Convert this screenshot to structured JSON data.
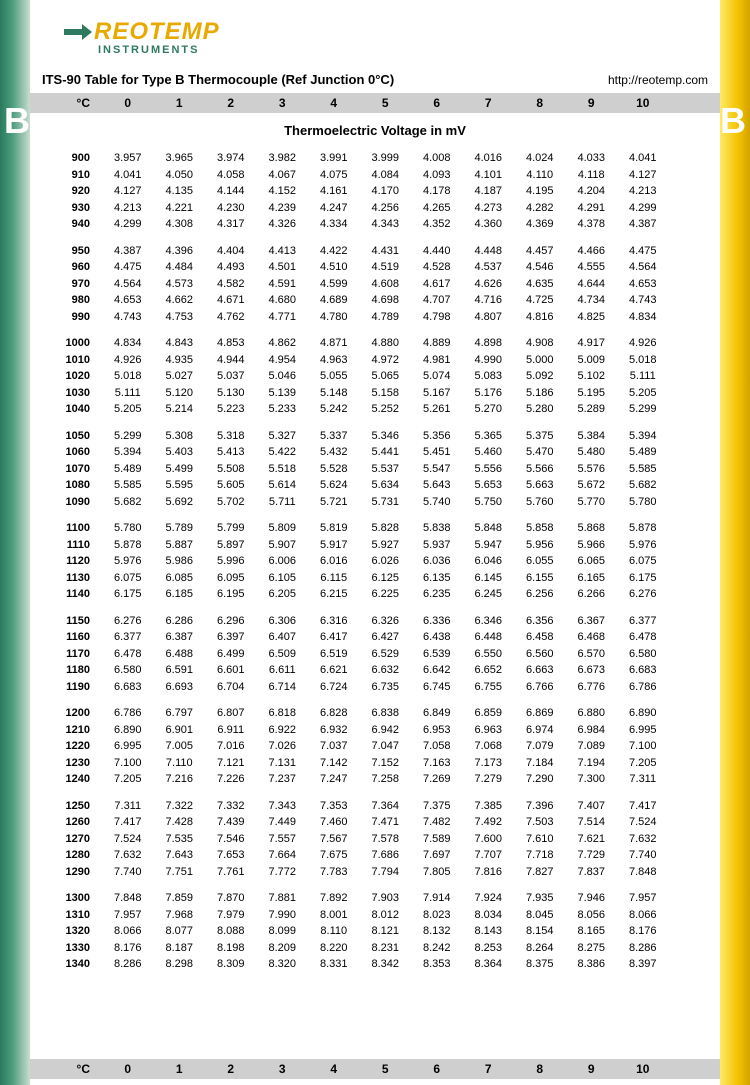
{
  "logo": {
    "brand_reo": "REO",
    "brand_temp": "TEMP",
    "sub": "INSTRUMENTS",
    "accent_color": "#e9aa00",
    "sub_color": "#2e7a5f"
  },
  "title": "ITS-90 Table for Type B Thermocouple (Ref Junction 0°C)",
  "url": "http://reotemp.com",
  "big_letter": "B",
  "subtitle": "Thermoelectric Voltage in mV",
  "header": {
    "temp_label": "°C",
    "cols": [
      "0",
      "1",
      "2",
      "3",
      "4",
      "5",
      "6",
      "7",
      "8",
      "9",
      "10"
    ]
  },
  "colors": {
    "left_grad_from": "#2b7a5f",
    "left_grad_to": "#c8ddd0",
    "right_grad_from": "#ffe96a",
    "right_grad_to": "#d4a400",
    "header_bg": "#cfcfcf"
  },
  "groups": [
    [
      {
        "t": "900",
        "v": [
          "3.957",
          "3.965",
          "3.974",
          "3.982",
          "3.991",
          "3.999",
          "4.008",
          "4.016",
          "4.024",
          "4.033",
          "4.041"
        ]
      },
      {
        "t": "910",
        "v": [
          "4.041",
          "4.050",
          "4.058",
          "4.067",
          "4.075",
          "4.084",
          "4.093",
          "4.101",
          "4.110",
          "4.118",
          "4.127"
        ]
      },
      {
        "t": "920",
        "v": [
          "4.127",
          "4.135",
          "4.144",
          "4.152",
          "4.161",
          "4.170",
          "4.178",
          "4.187",
          "4.195",
          "4.204",
          "4.213"
        ]
      },
      {
        "t": "930",
        "v": [
          "4.213",
          "4.221",
          "4.230",
          "4.239",
          "4.247",
          "4.256",
          "4.265",
          "4.273",
          "4.282",
          "4.291",
          "4.299"
        ]
      },
      {
        "t": "940",
        "v": [
          "4.299",
          "4.308",
          "4.317",
          "4.326",
          "4.334",
          "4.343",
          "4.352",
          "4.360",
          "4.369",
          "4.378",
          "4.387"
        ]
      }
    ],
    [
      {
        "t": "950",
        "v": [
          "4.387",
          "4.396",
          "4.404",
          "4.413",
          "4.422",
          "4.431",
          "4.440",
          "4.448",
          "4.457",
          "4.466",
          "4.475"
        ]
      },
      {
        "t": "960",
        "v": [
          "4.475",
          "4.484",
          "4.493",
          "4.501",
          "4.510",
          "4.519",
          "4.528",
          "4.537",
          "4.546",
          "4.555",
          "4.564"
        ]
      },
      {
        "t": "970",
        "v": [
          "4.564",
          "4.573",
          "4.582",
          "4.591",
          "4.599",
          "4.608",
          "4.617",
          "4.626",
          "4.635",
          "4.644",
          "4.653"
        ]
      },
      {
        "t": "980",
        "v": [
          "4.653",
          "4.662",
          "4.671",
          "4.680",
          "4.689",
          "4.698",
          "4.707",
          "4.716",
          "4.725",
          "4.734",
          "4.743"
        ]
      },
      {
        "t": "990",
        "v": [
          "4.743",
          "4.753",
          "4.762",
          "4.771",
          "4.780",
          "4.789",
          "4.798",
          "4.807",
          "4.816",
          "4.825",
          "4.834"
        ]
      }
    ],
    [
      {
        "t": "1000",
        "v": [
          "4.834",
          "4.843",
          "4.853",
          "4.862",
          "4.871",
          "4.880",
          "4.889",
          "4.898",
          "4.908",
          "4.917",
          "4.926"
        ]
      },
      {
        "t": "1010",
        "v": [
          "4.926",
          "4.935",
          "4.944",
          "4.954",
          "4.963",
          "4.972",
          "4.981",
          "4.990",
          "5.000",
          "5.009",
          "5.018"
        ]
      },
      {
        "t": "1020",
        "v": [
          "5.018",
          "5.027",
          "5.037",
          "5.046",
          "5.055",
          "5.065",
          "5.074",
          "5.083",
          "5.092",
          "5.102",
          "5.111"
        ]
      },
      {
        "t": "1030",
        "v": [
          "5.111",
          "5.120",
          "5.130",
          "5.139",
          "5.148",
          "5.158",
          "5.167",
          "5.176",
          "5.186",
          "5.195",
          "5.205"
        ]
      },
      {
        "t": "1040",
        "v": [
          "5.205",
          "5.214",
          "5.223",
          "5.233",
          "5.242",
          "5.252",
          "5.261",
          "5.270",
          "5.280",
          "5.289",
          "5.299"
        ]
      }
    ],
    [
      {
        "t": "1050",
        "v": [
          "5.299",
          "5.308",
          "5.318",
          "5.327",
          "5.337",
          "5.346",
          "5.356",
          "5.365",
          "5.375",
          "5.384",
          "5.394"
        ]
      },
      {
        "t": "1060",
        "v": [
          "5.394",
          "5.403",
          "5.413",
          "5.422",
          "5.432",
          "5.441",
          "5.451",
          "5.460",
          "5.470",
          "5.480",
          "5.489"
        ]
      },
      {
        "t": "1070",
        "v": [
          "5.489",
          "5.499",
          "5.508",
          "5.518",
          "5.528",
          "5.537",
          "5.547",
          "5.556",
          "5.566",
          "5.576",
          "5.585"
        ]
      },
      {
        "t": "1080",
        "v": [
          "5.585",
          "5.595",
          "5.605",
          "5.614",
          "5.624",
          "5.634",
          "5.643",
          "5.653",
          "5.663",
          "5.672",
          "5.682"
        ]
      },
      {
        "t": "1090",
        "v": [
          "5.682",
          "5.692",
          "5.702",
          "5.711",
          "5.721",
          "5.731",
          "5.740",
          "5.750",
          "5.760",
          "5.770",
          "5.780"
        ]
      }
    ],
    [
      {
        "t": "1100",
        "v": [
          "5.780",
          "5.789",
          "5.799",
          "5.809",
          "5.819",
          "5.828",
          "5.838",
          "5.848",
          "5.858",
          "5.868",
          "5.878"
        ]
      },
      {
        "t": "1110",
        "v": [
          "5.878",
          "5.887",
          "5.897",
          "5.907",
          "5.917",
          "5.927",
          "5.937",
          "5.947",
          "5.956",
          "5.966",
          "5.976"
        ]
      },
      {
        "t": "1120",
        "v": [
          "5.976",
          "5.986",
          "5.996",
          "6.006",
          "6.016",
          "6.026",
          "6.036",
          "6.046",
          "6.055",
          "6.065",
          "6.075"
        ]
      },
      {
        "t": "1130",
        "v": [
          "6.075",
          "6.085",
          "6.095",
          "6.105",
          "6.115",
          "6.125",
          "6.135",
          "6.145",
          "6.155",
          "6.165",
          "6.175"
        ]
      },
      {
        "t": "1140",
        "v": [
          "6.175",
          "6.185",
          "6.195",
          "6.205",
          "6.215",
          "6.225",
          "6.235",
          "6.245",
          "6.256",
          "6.266",
          "6.276"
        ]
      }
    ],
    [
      {
        "t": "1150",
        "v": [
          "6.276",
          "6.286",
          "6.296",
          "6.306",
          "6.316",
          "6.326",
          "6.336",
          "6.346",
          "6.356",
          "6.367",
          "6.377"
        ]
      },
      {
        "t": "1160",
        "v": [
          "6.377",
          "6.387",
          "6.397",
          "6.407",
          "6.417",
          "6.427",
          "6.438",
          "6.448",
          "6.458",
          "6.468",
          "6.478"
        ]
      },
      {
        "t": "1170",
        "v": [
          "6.478",
          "6.488",
          "6.499",
          "6.509",
          "6.519",
          "6.529",
          "6.539",
          "6.550",
          "6.560",
          "6.570",
          "6.580"
        ]
      },
      {
        "t": "1180",
        "v": [
          "6.580",
          "6.591",
          "6.601",
          "6.611",
          "6.621",
          "6.632",
          "6.642",
          "6.652",
          "6.663",
          "6.673",
          "6.683"
        ]
      },
      {
        "t": "1190",
        "v": [
          "6.683",
          "6.693",
          "6.704",
          "6.714",
          "6.724",
          "6.735",
          "6.745",
          "6.755",
          "6.766",
          "6.776",
          "6.786"
        ]
      }
    ],
    [
      {
        "t": "1200",
        "v": [
          "6.786",
          "6.797",
          "6.807",
          "6.818",
          "6.828",
          "6.838",
          "6.849",
          "6.859",
          "6.869",
          "6.880",
          "6.890"
        ]
      },
      {
        "t": "1210",
        "v": [
          "6.890",
          "6.901",
          "6.911",
          "6.922",
          "6.932",
          "6.942",
          "6.953",
          "6.963",
          "6.974",
          "6.984",
          "6.995"
        ]
      },
      {
        "t": "1220",
        "v": [
          "6.995",
          "7.005",
          "7.016",
          "7.026",
          "7.037",
          "7.047",
          "7.058",
          "7.068",
          "7.079",
          "7.089",
          "7.100"
        ]
      },
      {
        "t": "1230",
        "v": [
          "7.100",
          "7.110",
          "7.121",
          "7.131",
          "7.142",
          "7.152",
          "7.163",
          "7.173",
          "7.184",
          "7.194",
          "7.205"
        ]
      },
      {
        "t": "1240",
        "v": [
          "7.205",
          "7.216",
          "7.226",
          "7.237",
          "7.247",
          "7.258",
          "7.269",
          "7.279",
          "7.290",
          "7.300",
          "7.311"
        ]
      }
    ],
    [
      {
        "t": "1250",
        "v": [
          "7.311",
          "7.322",
          "7.332",
          "7.343",
          "7.353",
          "7.364",
          "7.375",
          "7.385",
          "7.396",
          "7.407",
          "7.417"
        ]
      },
      {
        "t": "1260",
        "v": [
          "7.417",
          "7.428",
          "7.439",
          "7.449",
          "7.460",
          "7.471",
          "7.482",
          "7.492",
          "7.503",
          "7.514",
          "7.524"
        ]
      },
      {
        "t": "1270",
        "v": [
          "7.524",
          "7.535",
          "7.546",
          "7.557",
          "7.567",
          "7.578",
          "7.589",
          "7.600",
          "7.610",
          "7.621",
          "7.632"
        ]
      },
      {
        "t": "1280",
        "v": [
          "7.632",
          "7.643",
          "7.653",
          "7.664",
          "7.675",
          "7.686",
          "7.697",
          "7.707",
          "7.718",
          "7.729",
          "7.740"
        ]
      },
      {
        "t": "1290",
        "v": [
          "7.740",
          "7.751",
          "7.761",
          "7.772",
          "7.783",
          "7.794",
          "7.805",
          "7.816",
          "7.827",
          "7.837",
          "7.848"
        ]
      }
    ],
    [
      {
        "t": "1300",
        "v": [
          "7.848",
          "7.859",
          "7.870",
          "7.881",
          "7.892",
          "7.903",
          "7.914",
          "7.924",
          "7.935",
          "7.946",
          "7.957"
        ]
      },
      {
        "t": "1310",
        "v": [
          "7.957",
          "7.968",
          "7.979",
          "7.990",
          "8.001",
          "8.012",
          "8.023",
          "8.034",
          "8.045",
          "8.056",
          "8.066"
        ]
      },
      {
        "t": "1320",
        "v": [
          "8.066",
          "8.077",
          "8.088",
          "8.099",
          "8.110",
          "8.121",
          "8.132",
          "8.143",
          "8.154",
          "8.165",
          "8.176"
        ]
      },
      {
        "t": "1330",
        "v": [
          "8.176",
          "8.187",
          "8.198",
          "8.209",
          "8.220",
          "8.231",
          "8.242",
          "8.253",
          "8.264",
          "8.275",
          "8.286"
        ]
      },
      {
        "t": "1340",
        "v": [
          "8.286",
          "8.298",
          "8.309",
          "8.320",
          "8.331",
          "8.342",
          "8.353",
          "8.364",
          "8.375",
          "8.386",
          "8.397"
        ]
      }
    ]
  ]
}
